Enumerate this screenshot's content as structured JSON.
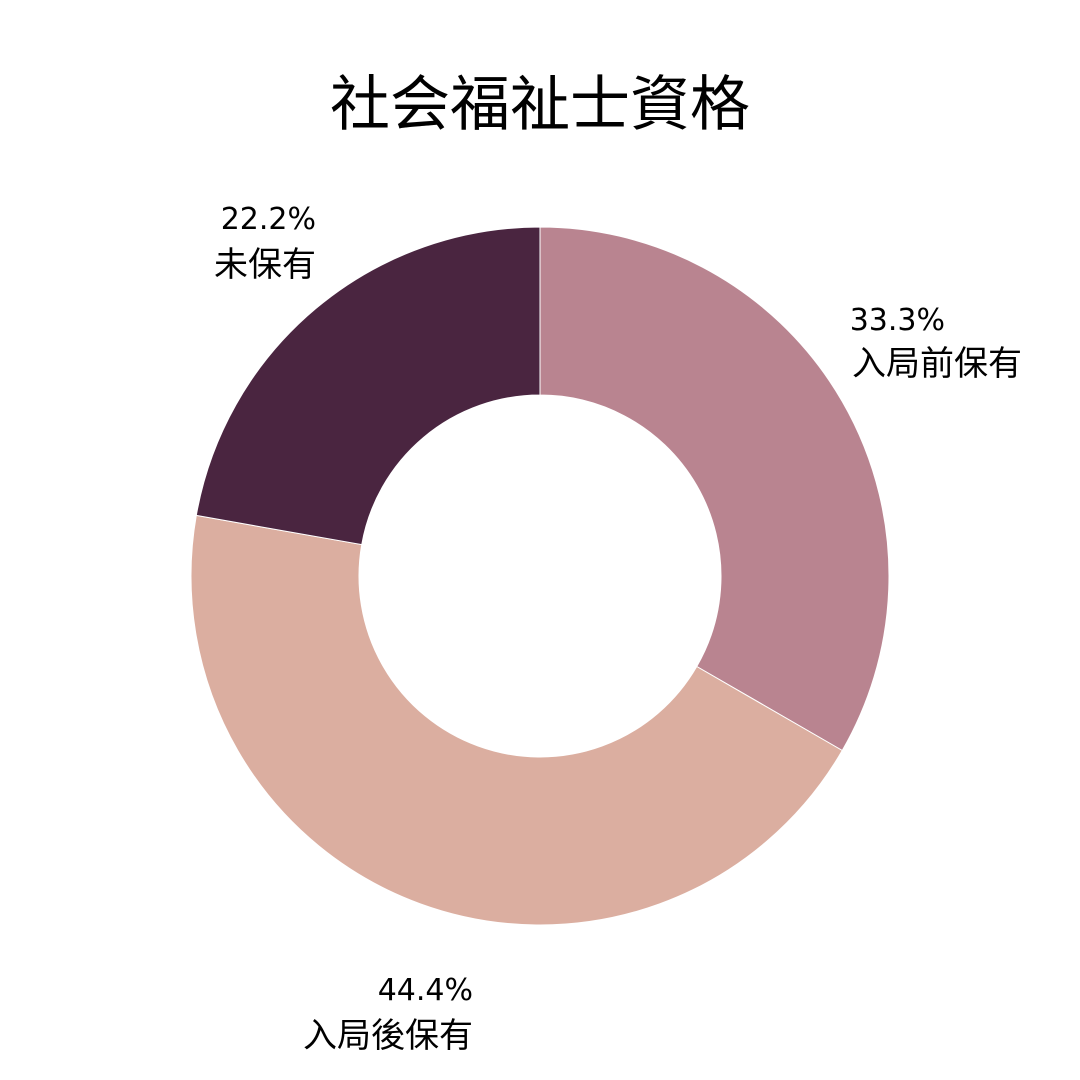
{
  "chart_data": {
    "type": "pie",
    "subtype": "donut",
    "title": "社会福祉士資格",
    "slices": [
      {
        "label": "入局前保有",
        "value": 33.3,
        "value_label": "33.3%",
        "color": "#b98490"
      },
      {
        "label": "入局後保有",
        "value": 44.4,
        "value_label": "44.4%",
        "color": "#dbaea0"
      },
      {
        "label": "未保有",
        "value": 22.2,
        "value_label": "22.2%",
        "color": "#4a2540"
      }
    ],
    "legend": "none"
  }
}
